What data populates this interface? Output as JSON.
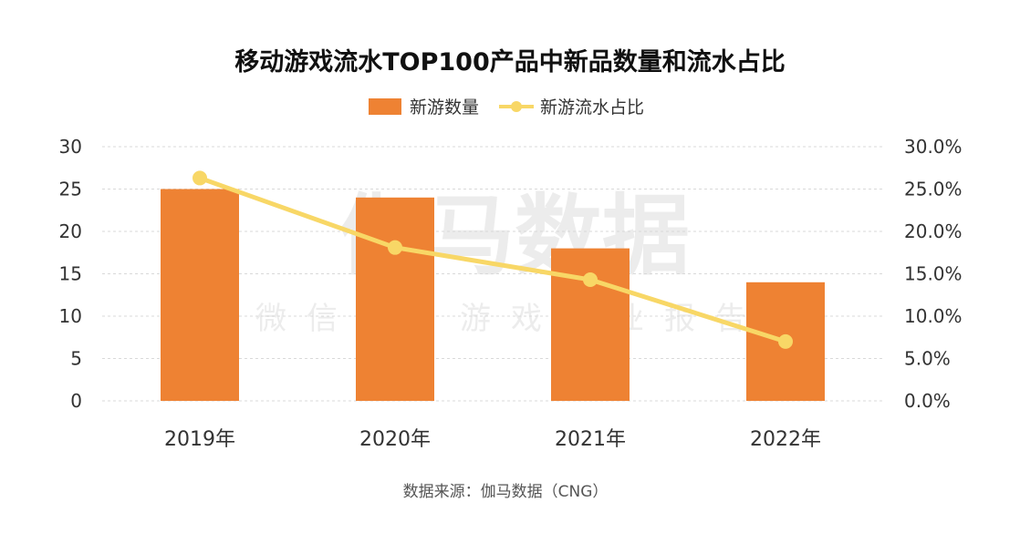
{
  "chart_data": {
    "type": "bar",
    "title": "移动游戏流水TOP100产品中新品数量和流水占比",
    "categories": [
      "2019年",
      "2020年",
      "2021年",
      "2022年"
    ],
    "series": [
      {
        "name": "新游数量",
        "type": "bar",
        "axis": "left",
        "values": [
          25,
          24,
          18,
          14
        ]
      },
      {
        "name": "新游流水占比",
        "type": "line",
        "axis": "right",
        "values": [
          26.3,
          18.1,
          14.3,
          7.0
        ]
      }
    ],
    "y_left": {
      "ylim": [
        0,
        30
      ],
      "ticks": [
        0,
        5,
        10,
        15,
        20,
        25,
        30
      ]
    },
    "y_right": {
      "ylim": [
        0,
        30
      ],
      "ticks": [
        0.0,
        5.0,
        10.0,
        15.0,
        20.0,
        25.0,
        30.0
      ],
      "unit": "%"
    },
    "grid": true,
    "legend": "top-center",
    "colors": {
      "bar": "#EE8233",
      "line": "#F8D766",
      "grid": "#D9D9D9"
    }
  },
  "watermark": {
    "line1": "伽马数据",
    "line2": "微信号：游戏产业报告"
  },
  "source": "数据来源：伽马数据（CNG）"
}
